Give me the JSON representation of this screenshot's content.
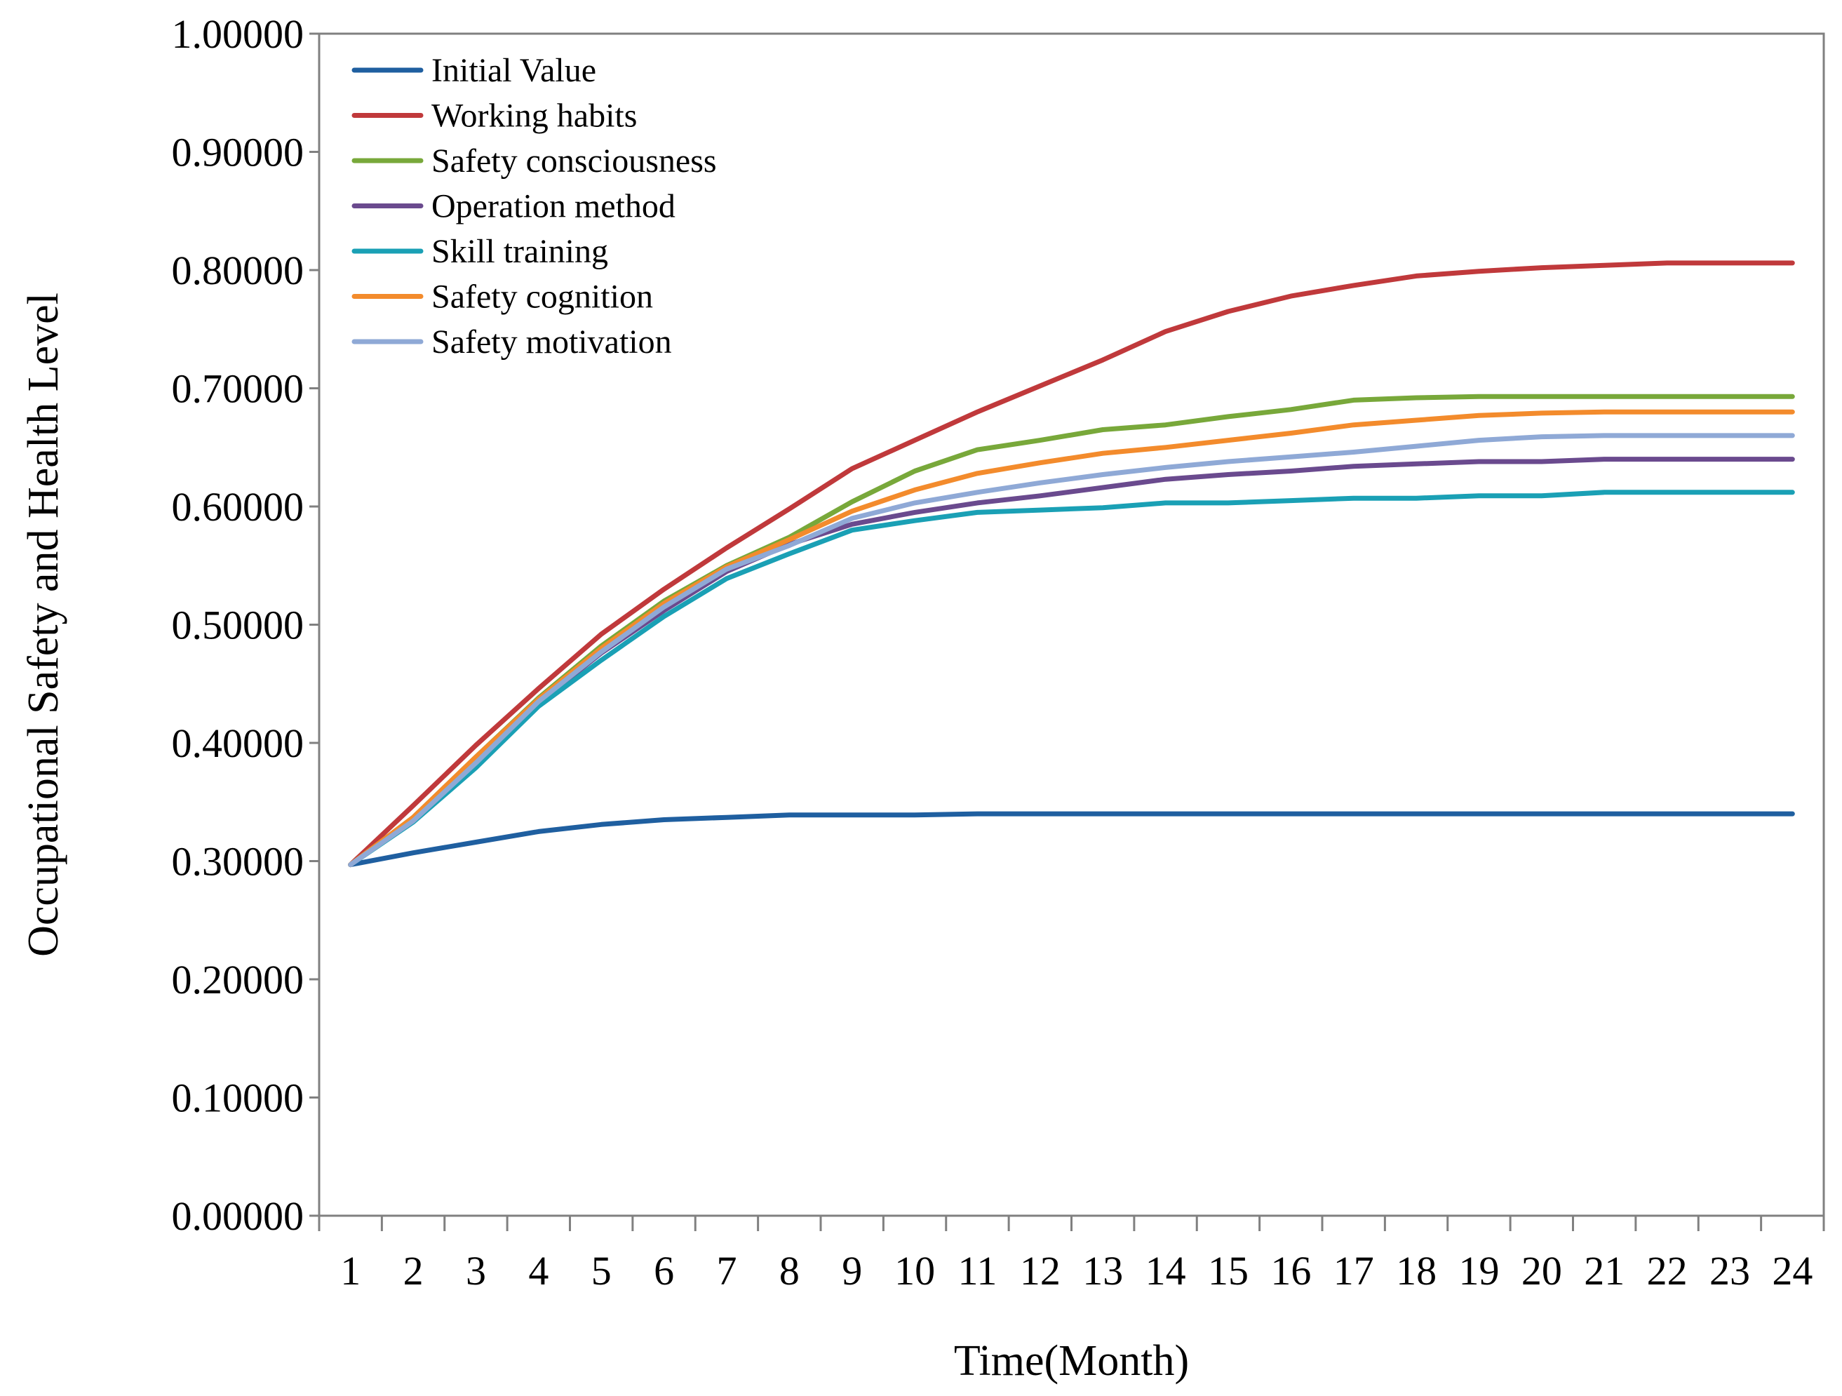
{
  "chart_data": {
    "type": "line",
    "title": "",
    "xlabel": "Time(Month)",
    "ylabel": "Occupational Safety and  Health Level",
    "ylim": [
      0,
      1
    ],
    "yticks": [
      "0.00000",
      "0.10000",
      "0.20000",
      "0.30000",
      "0.40000",
      "0.50000",
      "0.60000",
      "0.70000",
      "0.80000",
      "0.90000",
      "1.00000"
    ],
    "categories": [
      "1",
      "2",
      "3",
      "4",
      "5",
      "6",
      "7",
      "8",
      "9",
      "10",
      "11",
      "12",
      "13",
      "14",
      "15",
      "16",
      "17",
      "18",
      "19",
      "20",
      "21",
      "22",
      "23",
      "24"
    ],
    "grid": false,
    "legend_position": "top-left",
    "series": [
      {
        "name": "Initial Value",
        "color": "#1f5fa0",
        "values": [
          0.297,
          0.307,
          0.316,
          0.325,
          0.331,
          0.335,
          0.337,
          0.339,
          0.339,
          0.339,
          0.34,
          0.34,
          0.34,
          0.34,
          0.34,
          0.34,
          0.34,
          0.34,
          0.34,
          0.34,
          0.34,
          0.34,
          0.34,
          0.34
        ]
      },
      {
        "name": "Working habits",
        "color": "#c0393b",
        "values": [
          0.297,
          0.347,
          0.398,
          0.446,
          0.492,
          0.53,
          0.565,
          0.598,
          0.632,
          0.656,
          0.68,
          0.702,
          0.724,
          0.748,
          0.765,
          0.778,
          0.787,
          0.795,
          0.799,
          0.802,
          0.804,
          0.806,
          0.806,
          0.806
        ]
      },
      {
        "name": "Safety consciousness",
        "color": "#78a83a",
        "values": [
          0.297,
          0.337,
          0.388,
          0.438,
          0.482,
          0.52,
          0.55,
          0.574,
          0.604,
          0.63,
          0.648,
          0.656,
          0.665,
          0.669,
          0.676,
          0.682,
          0.69,
          0.692,
          0.693,
          0.693,
          0.693,
          0.693,
          0.693,
          0.693
        ]
      },
      {
        "name": "Operation method",
        "color": "#6a4a8e",
        "values": [
          0.297,
          0.335,
          0.383,
          0.434,
          0.476,
          0.512,
          0.545,
          0.568,
          0.585,
          0.595,
          0.603,
          0.609,
          0.616,
          0.623,
          0.627,
          0.63,
          0.634,
          0.636,
          0.638,
          0.638,
          0.64,
          0.64,
          0.64,
          0.64
        ]
      },
      {
        "name": "Skill training",
        "color": "#1aa0b5",
        "values": [
          0.297,
          0.333,
          0.379,
          0.431,
          0.47,
          0.507,
          0.539,
          0.56,
          0.58,
          0.588,
          0.595,
          0.597,
          0.599,
          0.603,
          0.603,
          0.605,
          0.607,
          0.607,
          0.609,
          0.609,
          0.612,
          0.612,
          0.612,
          0.612
        ]
      },
      {
        "name": "Safety cognition",
        "color": "#f38b2c",
        "values": [
          0.297,
          0.337,
          0.388,
          0.437,
          0.48,
          0.518,
          0.549,
          0.572,
          0.596,
          0.614,
          0.628,
          0.637,
          0.645,
          0.65,
          0.656,
          0.662,
          0.669,
          0.673,
          0.677,
          0.679,
          0.68,
          0.68,
          0.68,
          0.68
        ]
      },
      {
        "name": "Safety motivation",
        "color": "#8fa9d6",
        "values": [
          0.297,
          0.334,
          0.383,
          0.435,
          0.477,
          0.515,
          0.547,
          0.567,
          0.59,
          0.603,
          0.612,
          0.62,
          0.627,
          0.633,
          0.638,
          0.642,
          0.646,
          0.651,
          0.656,
          0.659,
          0.66,
          0.66,
          0.66,
          0.66
        ]
      }
    ]
  }
}
